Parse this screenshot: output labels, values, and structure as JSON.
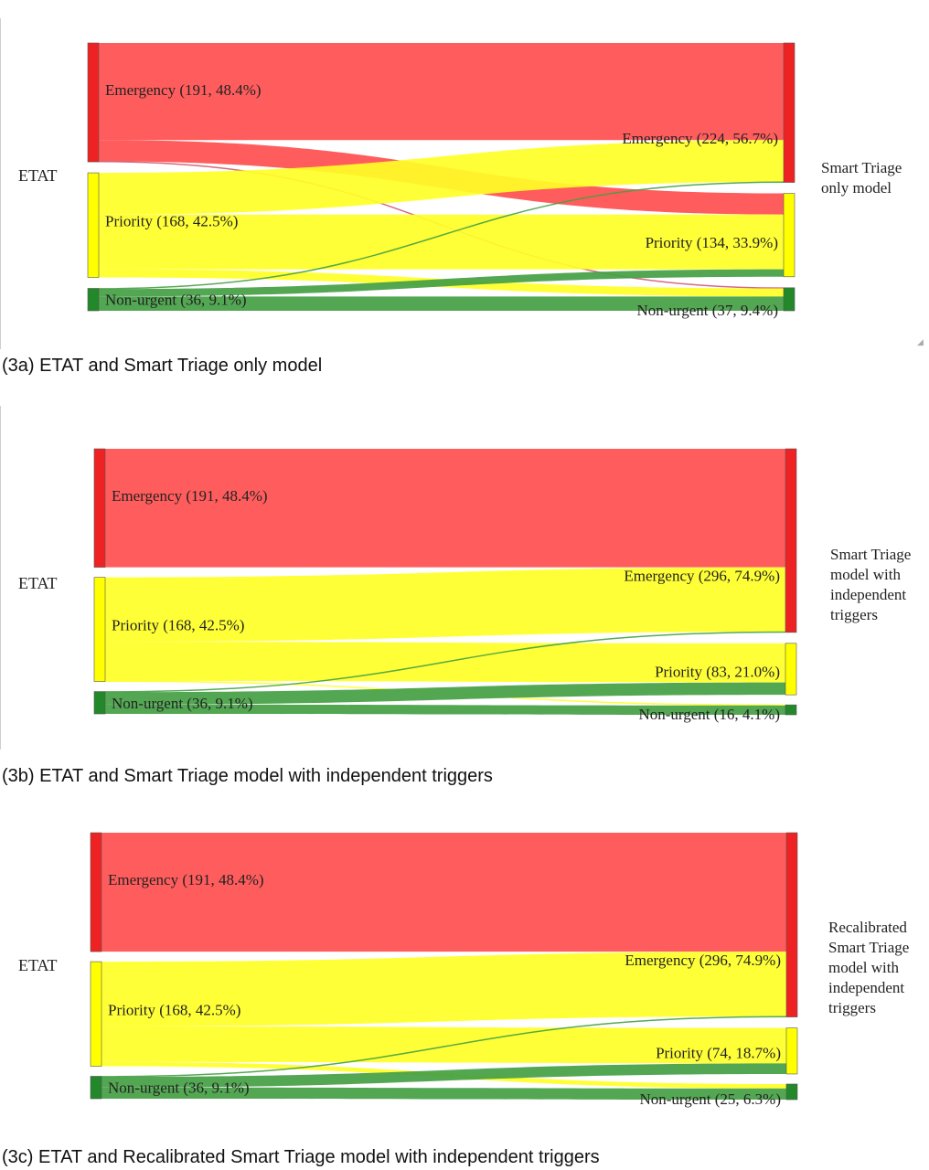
{
  "colors": {
    "emergency": "#ff4f4f",
    "emergency_node": "#ee2222",
    "priority": "#ffff26",
    "priority_node": "#ffff00",
    "non_urgent": "#44a044",
    "non_urgent_node": "#22882a",
    "mixed_band": "#ff5a1f"
  },
  "chart_data": [
    {
      "type": "sankey",
      "source_label": "ETAT",
      "target_label_lines": [
        "Smart Triage",
        "only model"
      ],
      "caption": "(3a) ETAT and Smart Triage only model",
      "sources": [
        {
          "key": "emergency",
          "label": "Emergency (191, 48.4%)",
          "value": 191
        },
        {
          "key": "priority",
          "label": "Priority (168, 42.5%)",
          "value": 168
        },
        {
          "key": "non_urgent",
          "label": "Non-urgent (36, 9.1%)",
          "value": 36
        }
      ],
      "targets": [
        {
          "key": "emergency",
          "label": "Emergency (224, 56.7%)",
          "value": 224
        },
        {
          "key": "priority",
          "label": "Priority (134, 33.9%)",
          "value": 134
        },
        {
          "key": "non_urgent",
          "label": "Non-urgent (37, 9.4%)",
          "value": 37
        }
      ],
      "links": [
        {
          "source": "emergency",
          "target": "emergency",
          "value": 156
        },
        {
          "source": "emergency",
          "target": "priority",
          "value": 34
        },
        {
          "source": "emergency",
          "target": "non_urgent",
          "value": 1
        },
        {
          "source": "priority",
          "target": "emergency",
          "value": 67
        },
        {
          "source": "priority",
          "target": "priority",
          "value": 88
        },
        {
          "source": "priority",
          "target": "non_urgent",
          "value": 13
        },
        {
          "source": "non_urgent",
          "target": "emergency",
          "value": 1
        },
        {
          "source": "non_urgent",
          "target": "priority",
          "value": 12
        },
        {
          "source": "non_urgent",
          "target": "non_urgent",
          "value": 23
        }
      ]
    },
    {
      "type": "sankey",
      "source_label": "ETAT",
      "target_label_lines": [
        "Smart Triage",
        "model with",
        "independent",
        "triggers"
      ],
      "caption": "(3b) ETAT and Smart Triage model with independent triggers",
      "sources": [
        {
          "key": "emergency",
          "label": "Emergency (191, 48.4%)",
          "value": 191
        },
        {
          "key": "priority",
          "label": "Priority (168, 42.5%)",
          "value": 168
        },
        {
          "key": "non_urgent",
          "label": "Non-urgent (36, 9.1%)",
          "value": 36
        }
      ],
      "targets": [
        {
          "key": "emergency",
          "label": "Emergency (296, 74.9%)",
          "value": 296
        },
        {
          "key": "priority",
          "label": "Priority (83, 21.0%)",
          "value": 83
        },
        {
          "key": "non_urgent",
          "label": "Non-urgent (16, 4.1%)",
          "value": 16
        }
      ],
      "links": [
        {
          "source": "emergency",
          "target": "emergency",
          "value": 191
        },
        {
          "source": "priority",
          "target": "emergency",
          "value": 104
        },
        {
          "source": "priority",
          "target": "priority",
          "value": 63
        },
        {
          "source": "priority",
          "target": "non_urgent",
          "value": 1
        },
        {
          "source": "non_urgent",
          "target": "emergency",
          "value": 1
        },
        {
          "source": "non_urgent",
          "target": "priority",
          "value": 20
        },
        {
          "source": "non_urgent",
          "target": "non_urgent",
          "value": 15
        }
      ]
    },
    {
      "type": "sankey",
      "source_label": "ETAT",
      "target_label_lines": [
        "Recalibrated",
        "Smart Triage",
        "model with",
        "independent",
        "triggers"
      ],
      "caption": "(3c) ETAT and Recalibrated Smart Triage model with independent triggers",
      "sources": [
        {
          "key": "emergency",
          "label": "Emergency (191, 48.4%)",
          "value": 191
        },
        {
          "key": "priority",
          "label": "Priority (168, 42.5%)",
          "value": 168
        },
        {
          "key": "non_urgent",
          "label": "Non-urgent (36, 9.1%)",
          "value": 36
        }
      ],
      "targets": [
        {
          "key": "emergency",
          "label": "Emergency (296, 74.9%)",
          "value": 296
        },
        {
          "key": "priority",
          "label": "Priority (74, 18.7%)",
          "value": 74
        },
        {
          "key": "non_urgent",
          "label": "Non-urgent (25, 6.3%)",
          "value": 25
        }
      ],
      "links": [
        {
          "source": "emergency",
          "target": "emergency",
          "value": 191
        },
        {
          "source": "priority",
          "target": "emergency",
          "value": 104
        },
        {
          "source": "priority",
          "target": "priority",
          "value": 57
        },
        {
          "source": "priority",
          "target": "non_urgent",
          "value": 7
        },
        {
          "source": "non_urgent",
          "target": "emergency",
          "value": 1
        },
        {
          "source": "non_urgent",
          "target": "priority",
          "value": 17
        },
        {
          "source": "non_urgent",
          "target": "non_urgent",
          "value": 18
        }
      ]
    }
  ]
}
